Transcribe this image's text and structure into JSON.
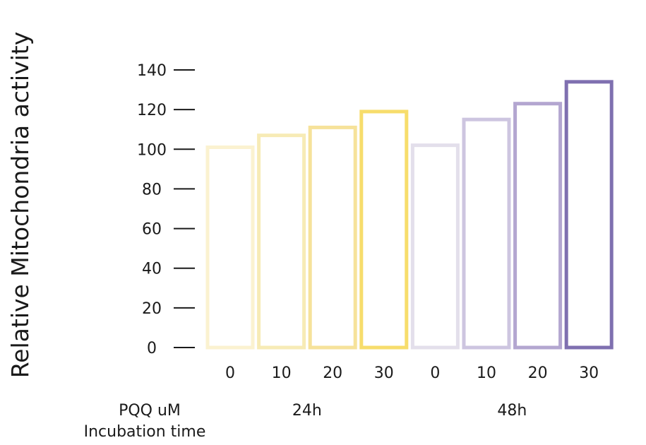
{
  "chart_data": {
    "type": "bar",
    "ylabel": "Relative Mitochondria activity",
    "ylim": [
      0,
      140
    ],
    "yticks": [
      0,
      20,
      40,
      60,
      80,
      100,
      120,
      140
    ],
    "xlabel_row1": "PQQ uM",
    "xlabel_row2": "Incubation time",
    "groups": [
      {
        "label": "24h",
        "categories": [
          "0",
          "10",
          "20",
          "30"
        ],
        "values": [
          101,
          107,
          111,
          119
        ]
      },
      {
        "label": "48h",
        "categories": [
          "0",
          "10",
          "20",
          "30"
        ],
        "values": [
          102,
          115,
          123,
          134
        ]
      }
    ],
    "colors": [
      "#fbf2d0",
      "#f7ebb6",
      "#f6e29a",
      "#f7dd6c",
      "#e3dfeb",
      "#cdc5e0",
      "#b3a6d0",
      "#7f70b0"
    ],
    "style": "outlined bars, no fill"
  }
}
